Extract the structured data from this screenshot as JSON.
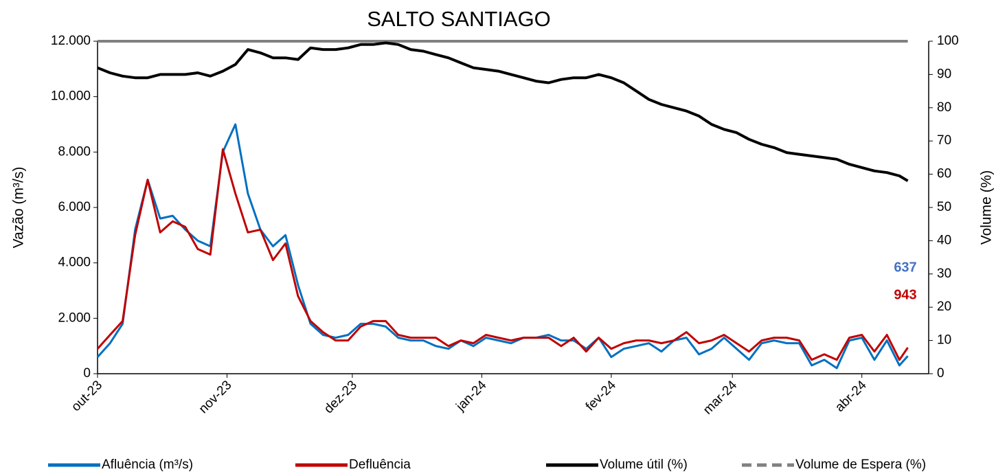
{
  "chart_data": {
    "type": "line",
    "title": "SALTO SANTIAGO",
    "y_label": "Vazão (m³/s)",
    "y2_label": "Volume (%)",
    "x": [
      0,
      3,
      6,
      9,
      12,
      15,
      18,
      21,
      24,
      27,
      30,
      33,
      36,
      39,
      42,
      45,
      48,
      51,
      54,
      57,
      60,
      63,
      66,
      69,
      72,
      75,
      78,
      81,
      84,
      87,
      90,
      93,
      96,
      99,
      102,
      105,
      108,
      111,
      114,
      117,
      120,
      123,
      126,
      129,
      132,
      135,
      138,
      141,
      144,
      147,
      150,
      153,
      156,
      159,
      162,
      165,
      168,
      171,
      174,
      177,
      180,
      183,
      186,
      189,
      192,
      194
    ],
    "xlim": [
      0,
      199
    ],
    "xticks": [
      {
        "value": 0,
        "label": "out-23"
      },
      {
        "value": 31,
        "label": "nov-23"
      },
      {
        "value": 61,
        "label": "dez-23"
      },
      {
        "value": 92,
        "label": "jan-24"
      },
      {
        "value": 123,
        "label": "fev-24"
      },
      {
        "value": 152,
        "label": "mar-24"
      },
      {
        "value": 183,
        "label": "abr-24"
      }
    ],
    "ylim": [
      0,
      12000
    ],
    "yticks": [
      0,
      {
        "value": 2000,
        "label": "2.000"
      },
      {
        "value": 4000,
        "label": "4.000"
      },
      {
        "value": 6000,
        "label": "6.000"
      },
      {
        "value": 8000,
        "label": "8.000"
      },
      {
        "value": 10000,
        "label": "10.000"
      },
      {
        "value": 12000,
        "label": "12.000"
      }
    ],
    "y2lim": [
      0,
      100
    ],
    "y2ticks": [
      0,
      10,
      20,
      30,
      40,
      50,
      60,
      70,
      80,
      90,
      100
    ],
    "series": [
      {
        "name": "Afluência (m³/s)",
        "color": "#0070c0",
        "values": [
          600,
          1100,
          1800,
          5200,
          7000,
          5600,
          5700,
          5200,
          4800,
          4600,
          8000,
          9000,
          6500,
          5200,
          4600,
          5000,
          3200,
          1800,
          1400,
          1300,
          1400,
          1800,
          1800,
          1700,
          1300,
          1200,
          1200,
          1000,
          900,
          1200,
          1000,
          1300,
          1200,
          1100,
          1300,
          1300,
          1400,
          1200,
          1200,
          900,
          1300,
          600,
          900,
          1000,
          1100,
          800,
          1200,
          1300,
          700,
          900,
          1300,
          900,
          500,
          1100,
          1200,
          1100,
          1100,
          300,
          500,
          200,
          1200,
          1300,
          500,
          1200,
          300,
          637
        ]
      },
      {
        "name": "Defluência",
        "color": "#c00000",
        "values": [
          900,
          1400,
          1900,
          5000,
          7000,
          5100,
          5500,
          5300,
          4500,
          4300,
          8100,
          6500,
          5100,
          5200,
          4100,
          4700,
          2800,
          1900,
          1500,
          1200,
          1200,
          1700,
          1900,
          1900,
          1400,
          1300,
          1300,
          1300,
          1000,
          1200,
          1100,
          1400,
          1300,
          1200,
          1300,
          1300,
          1300,
          1000,
          1300,
          800,
          1300,
          900,
          1100,
          1200,
          1200,
          1100,
          1200,
          1500,
          1100,
          1200,
          1400,
          1100,
          800,
          1200,
          1300,
          1300,
          1200,
          500,
          700,
          500,
          1300,
          1400,
          800,
          1400,
          500,
          943
        ]
      },
      {
        "name": "Volume útil (%)",
        "color": "#000000",
        "axis": "y2",
        "values": [
          92,
          90.5,
          89.5,
          89,
          89,
          90,
          90,
          90,
          90.5,
          89.5,
          91,
          93,
          97.5,
          96.5,
          95,
          95,
          94.5,
          98,
          97.5,
          97.5,
          98,
          99,
          99,
          99.5,
          99,
          97.5,
          97,
          96,
          95,
          93.5,
          92,
          91.5,
          91,
          90,
          89,
          88,
          87.5,
          88.5,
          89,
          89,
          90,
          89,
          87.5,
          85,
          82.5,
          81,
          80,
          79,
          77.5,
          75,
          73.5,
          72.5,
          70.5,
          69,
          68,
          66.5,
          66,
          65.5,
          65,
          64.5,
          63,
          62,
          61,
          60.5,
          59.5,
          58
        ]
      },
      {
        "name": "Volume de Espera (%)",
        "color": "#808080",
        "axis": "y2",
        "style": "dashed",
        "values": [
          100,
          100,
          100,
          100,
          100,
          100,
          100,
          100,
          100,
          100,
          100,
          100,
          100,
          100,
          100,
          100,
          100,
          100,
          100,
          100,
          100,
          100,
          100,
          100,
          100,
          100,
          100,
          100,
          100,
          100,
          100,
          100,
          100,
          100,
          100,
          100,
          100,
          100,
          100,
          100,
          100,
          100,
          100,
          100,
          100,
          100,
          100,
          100,
          100,
          100,
          100,
          100,
          100,
          100,
          100,
          100,
          100,
          100,
          100,
          100,
          100,
          100,
          100,
          100,
          100,
          100
        ]
      }
    ],
    "annotations": [
      {
        "text": "637",
        "color": "#4472c4"
      },
      {
        "text": "943",
        "color": "#c00000"
      }
    ]
  }
}
